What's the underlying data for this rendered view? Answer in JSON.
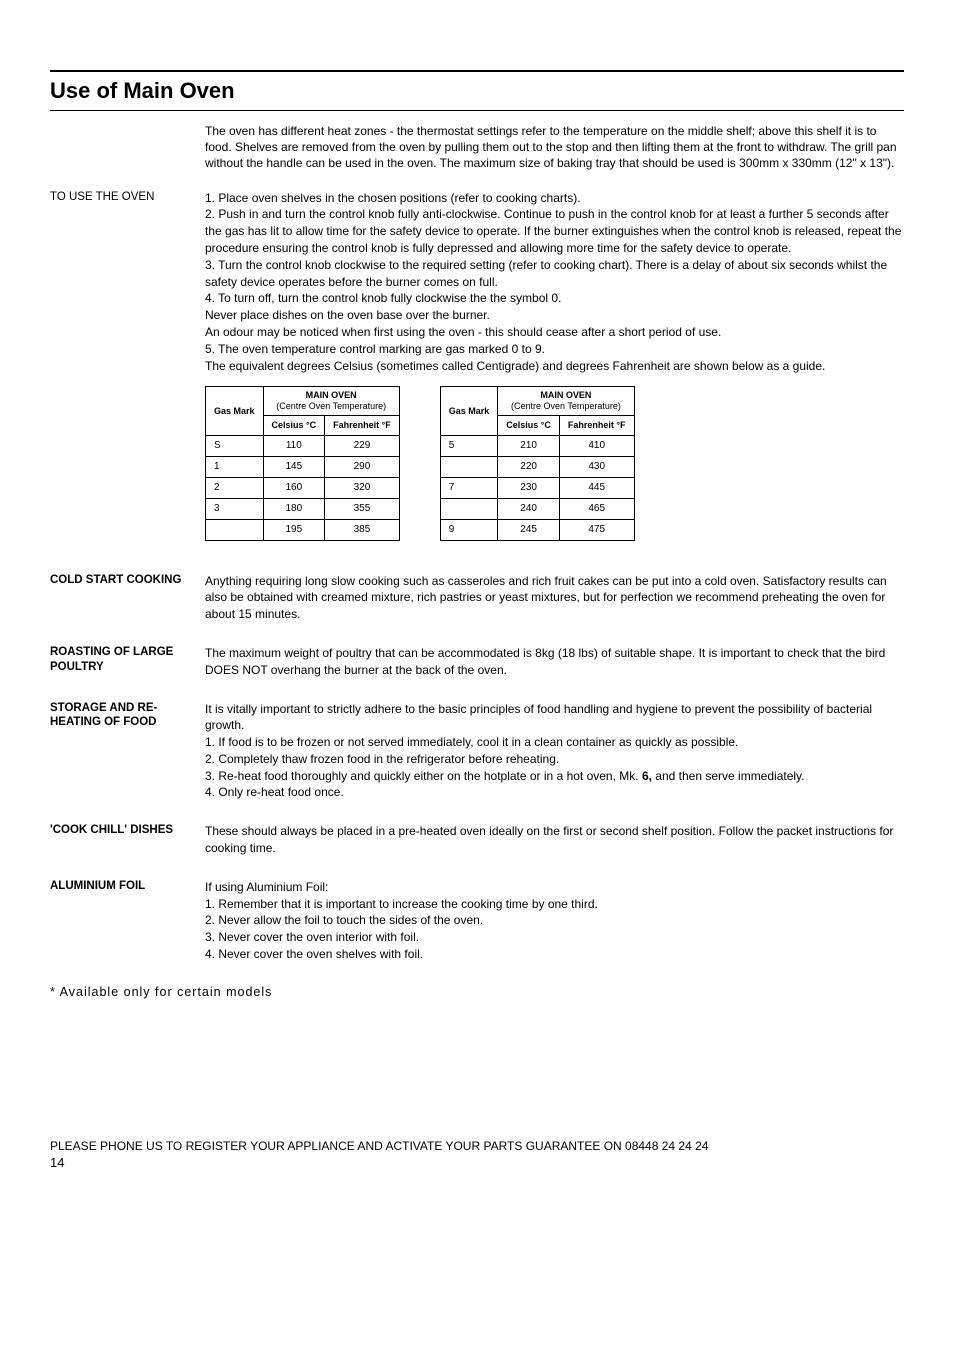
{
  "title": "Use of Main Oven",
  "intro": "The oven has different heat zones - the thermostat settings refer to the temperature on the middle shelf; above this shelf it is to food. Shelves are removed from the oven by pulling them out to the stop and then lifting them at the front to withdraw. The grill pan without the handle can be used in the oven. The maximum size of baking tray that should be used is 300mm x 330mm (12\" x 13\").",
  "to_use_label": "TO USE THE OVEN",
  "to_use_body": "1. Place oven shelves in the chosen positions (refer to cooking charts).\n2. Push in and turn the control knob fully anti-clockwise. Continue to push in the control knob for at least a further 5 seconds after the gas has lit to allow time for the safety device to operate. If the burner extinguishes when the control knob is released, repeat the procedure ensuring the control knob is fully depressed and allowing more time for the safety device to operate.\n3. Turn the control knob clockwise to the required setting (refer to cooking chart). There is a delay of about six seconds whilst the safety device operates before the burner comes on full.\n4. To turn off, turn the control knob fully clockwise the the symbol 0.\nNever place dishes on the oven base over the burner.\nAn odour may be noticed when first using the oven - this should cease after a short period of use.\n5. The oven temperature control marking are gas marked 0 to 9.\nThe equivalent degrees Celsius (sometimes called Centigrade) and degrees Fahrenheit are shown below as a guide.",
  "table_headers": {
    "gas_mark": "Gas Mark",
    "main_oven": "MAIN OVEN",
    "centre_temp": "(Centre Oven Temperature)",
    "celsius": "Celsius °C",
    "fahrenheit": "Fahrenheit °F"
  },
  "table1_rows": [
    [
      "S",
      "110",
      "229"
    ],
    [
      "1",
      "145",
      "290"
    ],
    [
      "2",
      "160",
      "320"
    ],
    [
      "3",
      "180",
      "355"
    ],
    [
      "",
      "195",
      "385"
    ]
  ],
  "table2_rows": [
    [
      "5",
      "210",
      "410"
    ],
    [
      "",
      "220",
      "430"
    ],
    [
      "7",
      "230",
      "445"
    ],
    [
      "",
      "240",
      "465"
    ],
    [
      "9",
      "245",
      "475"
    ]
  ],
  "sections": [
    {
      "label": "COLD START COOKING",
      "body": "Anything requiring long slow cooking such as casseroles and rich fruit cakes can be put into a cold oven. Satisfactory results can also be obtained with creamed mixture, rich pastries or yeast mixtures, but for perfection we recommend preheating the oven for about 15 minutes."
    },
    {
      "label": "ROASTING OF LARGE POULTRY",
      "body": "The maximum weight of poultry that can be accommodated is 8kg (18 lbs) of suitable shape. It is important to check that the bird DOES NOT overhang the burner at the back of the oven."
    },
    {
      "label": "STORAGE AND RE-HEATING OF FOOD",
      "body": "It is vitally important to strictly adhere to the basic principles of food handling and hygiene to prevent the possibility of bacterial growth.\n1. If food is to be frozen or not served immediately, cool it in a clean container as quickly as possible.\n2. Completely thaw frozen food in the refrigerator before reheating.\n3. Re-heat food thoroughly and quickly either on the hotplate or in a hot oven, Mk. 6, and then serve immediately.\n4. Only re-heat food once."
    },
    {
      "label": "'COOK CHILL' DISHES",
      "body": "These should always be placed in a pre-heated oven ideally on the first or second shelf position. Follow the packet instructions for cooking time."
    },
    {
      "label": "ALUMINIUM FOIL",
      "body": "If using Aluminium Foil:\n1. Remember that it is important to increase the cooking time by one third.\n2. Never allow the foil to touch the sides of the oven.\n3. Never cover the oven interior with foil.\n4. Never cover the oven shelves with foil."
    }
  ],
  "footnote": "* Available only for certain models",
  "footer": "PLEASE PHONE US TO REGISTER YOUR APPLIANCE  AND ACTIVATE YOUR PARTS GUARANTEE ON 08448 24 24 24",
  "pagenum": "14"
}
